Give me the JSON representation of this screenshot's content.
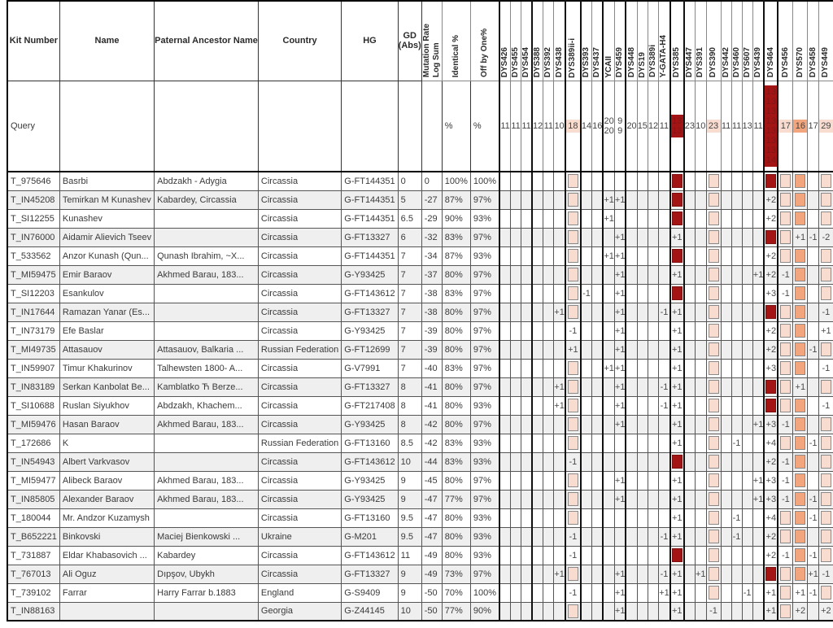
{
  "table": {
    "fixed_headers": [
      {
        "id": "kit-number",
        "label": "Kit Number"
      },
      {
        "id": "name",
        "label": "Name"
      },
      {
        "id": "paternal-ancestor-name",
        "label": "Paternal Ancestor Name"
      },
      {
        "id": "country",
        "label": "Country"
      },
      {
        "id": "hg",
        "label": "HG"
      },
      {
        "id": "gd-abs",
        "label": "GD|(Abs)"
      }
    ],
    "rotated_headers": [
      {
        "id": "mutation-rate-log-sum",
        "label": "Mutation Rate|Log Sum"
      },
      {
        "id": "identical-pct",
        "label": "Identical %"
      },
      {
        "id": "off-by-one-pct",
        "label": "Off by One%"
      }
    ],
    "markers": [
      {
        "name": "DYS426",
        "q": [
          "11"
        ],
        "hl": "none",
        "thick": true
      },
      {
        "name": "DYS455",
        "q": [
          "11"
        ],
        "hl": "none"
      },
      {
        "name": "DYS454",
        "q": [
          "11"
        ],
        "hl": "none"
      },
      {
        "name": "DYS388",
        "q": [
          "12"
        ],
        "hl": "none",
        "thick": true
      },
      {
        "name": "DYS392",
        "q": [
          "11"
        ],
        "hl": "none"
      },
      {
        "name": "DYS438",
        "q": [
          "10"
        ],
        "hl": "none"
      },
      {
        "name": "DYS389ii-i",
        "q": [
          "18"
        ],
        "hl": "pink",
        "thick": true
      },
      {
        "name": "DYS393",
        "q": [
          "14"
        ],
        "hl": "none",
        "thick": true
      },
      {
        "name": "DYS437",
        "q": [
          "16"
        ],
        "hl": "none"
      },
      {
        "name": "YCAII",
        "q": [
          "20",
          "20"
        ],
        "hl": "none",
        "thick": true
      },
      {
        "name": "DYS459",
        "q": [
          "9",
          "9"
        ],
        "hl": "none"
      },
      {
        "name": "DYS448",
        "q": [
          "20"
        ],
        "hl": "none",
        "thick": true
      },
      {
        "name": "DYS19",
        "q": [
          "15"
        ],
        "hl": "none"
      },
      {
        "name": "DYS389i",
        "q": [
          "12"
        ],
        "hl": "none"
      },
      {
        "name": "Y-GATA-H4",
        "q": [
          "11"
        ],
        "hl": "none"
      },
      {
        "name": "DYS385",
        "q": [
          "13",
          "13"
        ],
        "hl": "darkred",
        "thick": true
      },
      {
        "name": "DYS447",
        "q": [
          "23"
        ],
        "hl": "none",
        "thick": true
      },
      {
        "name": "DYS391",
        "q": [
          "10"
        ],
        "hl": "none"
      },
      {
        "name": "DYS390",
        "q": [
          "23"
        ],
        "hl": "pink"
      },
      {
        "name": "DYS442",
        "q": [
          "11"
        ],
        "hl": "none"
      },
      {
        "name": "DYS460",
        "q": [
          "11"
        ],
        "hl": "none"
      },
      {
        "name": "DYS607",
        "q": [
          "13"
        ],
        "hl": "none"
      },
      {
        "name": "DYS439",
        "q": [
          "11"
        ],
        "hl": "none"
      },
      {
        "name": "DYS464",
        "q": [
          "13",
          "13",
          "13",
          "13",
          "13",
          "13",
          "13",
          "14"
        ],
        "hl": "darkred",
        "thick": true
      },
      {
        "name": "DYS456",
        "q": [
          "17"
        ],
        "hl": "pink",
        "thick": true
      },
      {
        "name": "DYS570",
        "q": [
          "16"
        ],
        "hl": "orange"
      },
      {
        "name": "DYS458",
        "q": [
          "17"
        ],
        "hl": "none"
      },
      {
        "name": "DYS449",
        "q": [
          "29"
        ],
        "hl": "pink"
      },
      {
        "name": "DYS576",
        "q": [
          "16"
        ],
        "hl": "none"
      },
      {
        "name": "CDY",
        "q": [
          "33",
          "35",
          "36"
        ],
        "hl": "darkred",
        "thick": true
      }
    ],
    "query_row": {
      "label": "Query",
      "identical": "%",
      "off_by_one": "%"
    },
    "rows": [
      {
        "kit": "T_975646",
        "name": "Basrbi",
        "ancestor": "Abdzakh - Adygia",
        "country": "Circassia",
        "hg": "G-FT144351",
        "gd": "0",
        "mrls": "0",
        "identical": "100%",
        "off_by_one": "100%",
        "diffs": {}
      },
      {
        "kit": "T_IN45208",
        "name": "Temirkan M Kunashev",
        "ancestor": "Kabardey, Circassia",
        "country": "Circassia",
        "hg": "G-FT144351",
        "gd": "5",
        "mrls": "-27",
        "identical": "87%",
        "off_by_one": "97%",
        "diffs": {
          "YCAII": "+1",
          "DYS459": "+1",
          "DYS464": "+2",
          "CDY": "+1"
        }
      },
      {
        "kit": "T_SI12255",
        "name": "Kunashev",
        "ancestor": "",
        "country": "Circassia",
        "hg": "G-FT144351",
        "gd": "6.5",
        "mrls": "-29",
        "identical": "90%",
        "off_by_one": "93%",
        "diffs": {
          "YCAII": "+1",
          "DYS464": "+2",
          "CDY": "+4"
        }
      },
      {
        "kit": "T_IN76000",
        "name": "Aidamir Alievich Tseev",
        "ancestor": "",
        "country": "Circassia",
        "hg": "G-FT13327",
        "gd": "6",
        "mrls": "-32",
        "identical": "83%",
        "off_by_one": "97%",
        "diffs": {
          "DYS459": "+1",
          "DYS385": "+1",
          "DYS570": "+1",
          "DYS458": "-1",
          "DYS449": "-2"
        }
      },
      {
        "kit": "T_533562",
        "name": "Anzor Kunash (Qun...",
        "ancestor": "Qunash Ibrahim, ~X...",
        "country": "Circassia",
        "hg": "G-FT144351",
        "gd": "7",
        "mrls": "-34",
        "identical": "87%",
        "off_by_one": "93%",
        "diffs": {
          "YCAII": "+1",
          "DYS459": "+1",
          "DYS464": "+2",
          "CDY": "+3"
        }
      },
      {
        "kit": "T_MI59475",
        "name": "Emir Baraov",
        "ancestor": "Akhmed Barau, 183...",
        "country": "Circassia",
        "hg": "G-Y93425",
        "gd": "7",
        "mrls": "-37",
        "identical": "80%",
        "off_by_one": "97%",
        "diffs": {
          "DYS459": "+1",
          "DYS385": "+1",
          "DYS439": "+1",
          "DYS464": "+2",
          "DYS456": "-1",
          "CDY": "+1"
        }
      },
      {
        "kit": "T_SI12203",
        "name": "Esankulov",
        "ancestor": "",
        "country": "Circassia",
        "hg": "G-FT143612",
        "gd": "7",
        "mrls": "-38",
        "identical": "83%",
        "off_by_one": "97%",
        "diffs": {
          "DYS393": "-1",
          "DYS459": "+1",
          "DYS464": "+3",
          "DYS456": "-1",
          "CDY": "+1"
        }
      },
      {
        "kit": "T_IN17644",
        "name": "Ramazan Yanar (Es...",
        "ancestor": "",
        "country": "Circassia",
        "hg": "G-FT13327",
        "gd": "7",
        "mrls": "-38",
        "identical": "80%",
        "off_by_one": "97%",
        "diffs": {
          "DYS438": "+1",
          "DYS459": "+1",
          "Y-GATA-H4": "-1",
          "DYS385": "+1",
          "DYS449": "-1",
          "CDY": "+2"
        }
      },
      {
        "kit": "T_IN73179",
        "name": "Efe Baslar",
        "ancestor": "",
        "country": "Circassia",
        "hg": "G-Y93425",
        "gd": "7",
        "mrls": "-39",
        "identical": "80%",
        "off_by_one": "97%",
        "diffs": {
          "DYS389ii-i": "-1",
          "DYS459": "+1",
          "DYS385": "+1",
          "DYS464": "+2",
          "DYS449": "+1",
          "CDY": "+1"
        }
      },
      {
        "kit": "T_MI49735",
        "name": "Attasauov",
        "ancestor": "Attasauov, Balkaria ...",
        "country": "Russian Federation",
        "hg": "G-FT12699",
        "gd": "7",
        "mrls": "-39",
        "identical": "80%",
        "off_by_one": "97%",
        "diffs": {
          "DYS389ii-i": "+1",
          "DYS459": "+1",
          "DYS385": "+1",
          "DYS464": "+2",
          "DYS458": "-1",
          "CDY": "+1"
        }
      },
      {
        "kit": "T_IN59907",
        "name": "Timur Khakurinov",
        "ancestor": "Talhewsten 1800- A...",
        "country": "Circassia",
        "hg": "G-V7991",
        "gd": "7",
        "mrls": "-40",
        "identical": "83%",
        "off_by_one": "97%",
        "diffs": {
          "YCAII": "+1",
          "DYS459": "+1",
          "DYS385": "+1",
          "DYS464": "+3",
          "DYS449": "-1"
        }
      },
      {
        "kit": "T_IN83189",
        "name": "Serkan Kanbolat Be...",
        "ancestor": "Kamblatko Ћ Berze...",
        "country": "Circassia",
        "hg": "G-FT13327",
        "gd": "8",
        "mrls": "-41",
        "identical": "80%",
        "off_by_one": "97%",
        "diffs": {
          "DYS438": "+1",
          "DYS459": "+1",
          "Y-GATA-H4": "-1",
          "DYS385": "+1",
          "DYS570": "+1",
          "CDY": "+3"
        }
      },
      {
        "kit": "T_SI10688",
        "name": "Ruslan Siyukhov",
        "ancestor": "Abdzakh, Khachem...",
        "country": "Circassia",
        "hg": "G-FT217408",
        "gd": "8",
        "mrls": "-41",
        "identical": "80%",
        "off_by_one": "93%",
        "diffs": {
          "DYS438": "+1",
          "DYS459": "+1",
          "Y-GATA-H4": "-1",
          "DYS385": "+1",
          "DYS449": "-1",
          "CDY": "+3"
        }
      },
      {
        "kit": "T_MI59476",
        "name": "Hasan Baraov",
        "ancestor": "Akhmed Barau, 183...",
        "country": "Circassia",
        "hg": "G-Y93425",
        "gd": "8",
        "mrls": "-42",
        "identical": "80%",
        "off_by_one": "97%",
        "diffs": {
          "DYS459": "+1",
          "DYS385": "+1",
          "DYS439": "+1",
          "DYS464": "+3",
          "DYS456": "-1",
          "CDY": "+1"
        }
      },
      {
        "kit": "T_172686",
        "name": "K",
        "ancestor": "",
        "country": "Russian Federation",
        "hg": "G-FT13160",
        "gd": "8.5",
        "mrls": "-42",
        "identical": "83%",
        "off_by_one": "93%",
        "diffs": {
          "DYS385": "+1",
          "DYS460": "-1",
          "DYS464": "+4",
          "DYS458": "-1",
          "CDY": "+2"
        }
      },
      {
        "kit": "T_IN54943",
        "name": "Albert Varkvasov",
        "ancestor": "",
        "country": "Circassia",
        "hg": "G-FT143612",
        "gd": "10",
        "mrls": "-44",
        "identical": "83%",
        "off_by_one": "93%",
        "diffs": {
          "DYS389ii-i": "-1",
          "DYS464": "+2",
          "DYS456": "-1",
          "DYS576": "+1",
          "CDY": "+5"
        }
      },
      {
        "kit": "T_MI59477",
        "name": "Alibeck Baraov",
        "ancestor": "Akhmed Barau, 183...",
        "country": "Circassia",
        "hg": "G-Y93425",
        "gd": "9",
        "mrls": "-45",
        "identical": "80%",
        "off_by_one": "97%",
        "diffs": {
          "DYS459": "+1",
          "DYS385": "+1",
          "DYS439": "+1",
          "DYS464": "+3",
          "DYS456": "-1",
          "CDY": "+2"
        }
      },
      {
        "kit": "T_IN85805",
        "name": "Alexander Baraov",
        "ancestor": "Akhmed Barau, 183...",
        "country": "Circassia",
        "hg": "G-Y93425",
        "gd": "9",
        "mrls": "-47",
        "identical": "77%",
        "off_by_one": "97%",
        "diffs": {
          "DYS459": "+1",
          "DYS385": "+1",
          "DYS439": "+1",
          "DYS464": "+3",
          "DYS456": "-1",
          "DYS458": "-1",
          "CDY": "+1"
        }
      },
      {
        "kit": "T_180044",
        "name": "Mr. Andzor Kuzamysh",
        "ancestor": "",
        "country": "Circassia",
        "hg": "G-FT13160",
        "gd": "9.5",
        "mrls": "-47",
        "identical": "80%",
        "off_by_one": "93%",
        "diffs": {
          "DYS385": "+1",
          "DYS460": "-1",
          "DYS464": "+4",
          "DYS458": "-1",
          "DYS576": "-1",
          "CDY": "+2"
        }
      },
      {
        "kit": "T_B652221",
        "name": "Binkovski",
        "ancestor": "Maciej Bienkowski ...",
        "country": "Ukraine",
        "hg": "G-M201",
        "gd": "9.5",
        "mrls": "-47",
        "identical": "80%",
        "off_by_one": "93%",
        "diffs": {
          "DYS389ii-i": "-1",
          "Y-GATA-H4": "-1",
          "DYS385": "+1",
          "DYS460": "-1",
          "DYS464": "+2",
          "CDY": "+4"
        }
      },
      {
        "kit": "T_731887",
        "name": "Eldar Khabasovich ...",
        "ancestor": "Kabardey",
        "country": "Circassia",
        "hg": "G-FT143612",
        "gd": "11",
        "mrls": "-49",
        "identical": "80%",
        "off_by_one": "93%",
        "diffs": {
          "DYS389ii-i": "-1",
          "DYS464": "+2",
          "DYS456": "-1",
          "DYS458": "-1",
          "DYS576": "+1",
          "CDY": "+5"
        }
      },
      {
        "kit": "T_767013",
        "name": "Ali Oguz",
        "ancestor": "Dıpşov, Ubykh",
        "country": "Circassia",
        "hg": "G-FT13327",
        "gd": "9",
        "mrls": "-49",
        "identical": "73%",
        "off_by_one": "97%",
        "diffs": {
          "DYS438": "+1",
          "DYS459": "+1",
          "Y-GATA-H4": "-1",
          "DYS385": "+1",
          "DYS391": "+1",
          "DYS458": "+1",
          "DYS449": "-1",
          "CDY": "+2"
        }
      },
      {
        "kit": "T_739102",
        "name": "Farrar",
        "ancestor": "Harry Farrar b.1883",
        "country": "England",
        "hg": "G-S9409",
        "gd": "9",
        "mrls": "-50",
        "identical": "70%",
        "off_by_one": "100%",
        "diffs": {
          "DYS389ii-i": "-1",
          "DYS459": "+1",
          "Y-GATA-H4": "+1",
          "DYS385": "+1",
          "DYS607": "-1",
          "DYS464": "+1",
          "DYS570": "+1",
          "DYS458": "-1",
          "CDY": "+1"
        }
      },
      {
        "kit": "T_IN88163",
        "name": "",
        "ancestor": "",
        "country": "Georgia",
        "hg": "G-Z44145",
        "gd": "10",
        "mrls": "-50",
        "identical": "77%",
        "off_by_one": "90%",
        "diffs": {
          "DYS459": "+1",
          "DYS385": "+1",
          "DYS390": "-1",
          "DYS464": "+1",
          "DYS570": "+2",
          "DYS449": "+2",
          "CDY": "+2"
        }
      }
    ],
    "colors": {
      "highlight_pink": "#f8dcd0",
      "highlight_orange": "#f3a57d",
      "highlight_darkred": "#a31515",
      "row_stripe": "#efefef"
    }
  }
}
